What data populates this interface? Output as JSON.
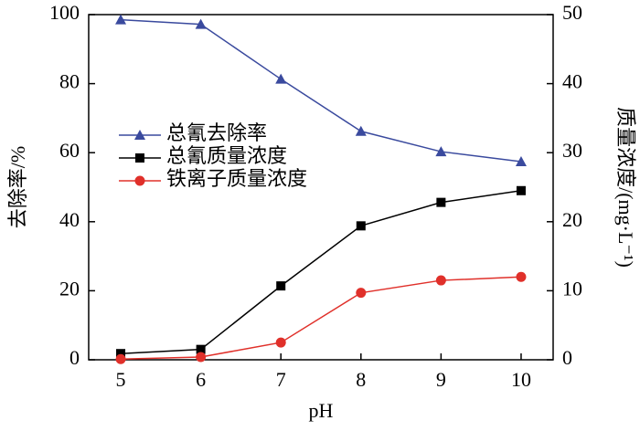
{
  "chart_data": {
    "type": "line",
    "xlabel": "pH",
    "ylabel": "去除率/%",
    "y2label": "质量浓度/(mg·L⁻¹)",
    "x": [
      5,
      6,
      7,
      8,
      9,
      10
    ],
    "xlim": [
      4.6,
      10.4
    ],
    "xticks": [
      5,
      6,
      7,
      8,
      9,
      10
    ],
    "ylim": [
      0,
      100
    ],
    "yticks": [
      0,
      20,
      40,
      60,
      80,
      100
    ],
    "y2lim": [
      0,
      50
    ],
    "y2ticks": [
      0,
      10,
      20,
      30,
      40,
      50
    ],
    "legend": "upper left",
    "series": [
      {
        "name": "总氰去除率",
        "color": "#3a4a9e",
        "marker": "triangle",
        "values": [
          98.5,
          97.2,
          81.3,
          66.2,
          60.3,
          57.4
        ]
      },
      {
        "name": "总氰质量浓度",
        "color": "#000000",
        "marker": "square",
        "axis": "y2",
        "values": [
          0.9,
          1.5,
          10.7,
          19.4,
          22.8,
          24.5
        ]
      },
      {
        "name": "铁离子质量浓度",
        "color": "#e0302a",
        "marker": "circle",
        "axis": "y2",
        "values": [
          0.1,
          0.4,
          2.5,
          9.7,
          11.5,
          12.0
        ]
      }
    ]
  }
}
